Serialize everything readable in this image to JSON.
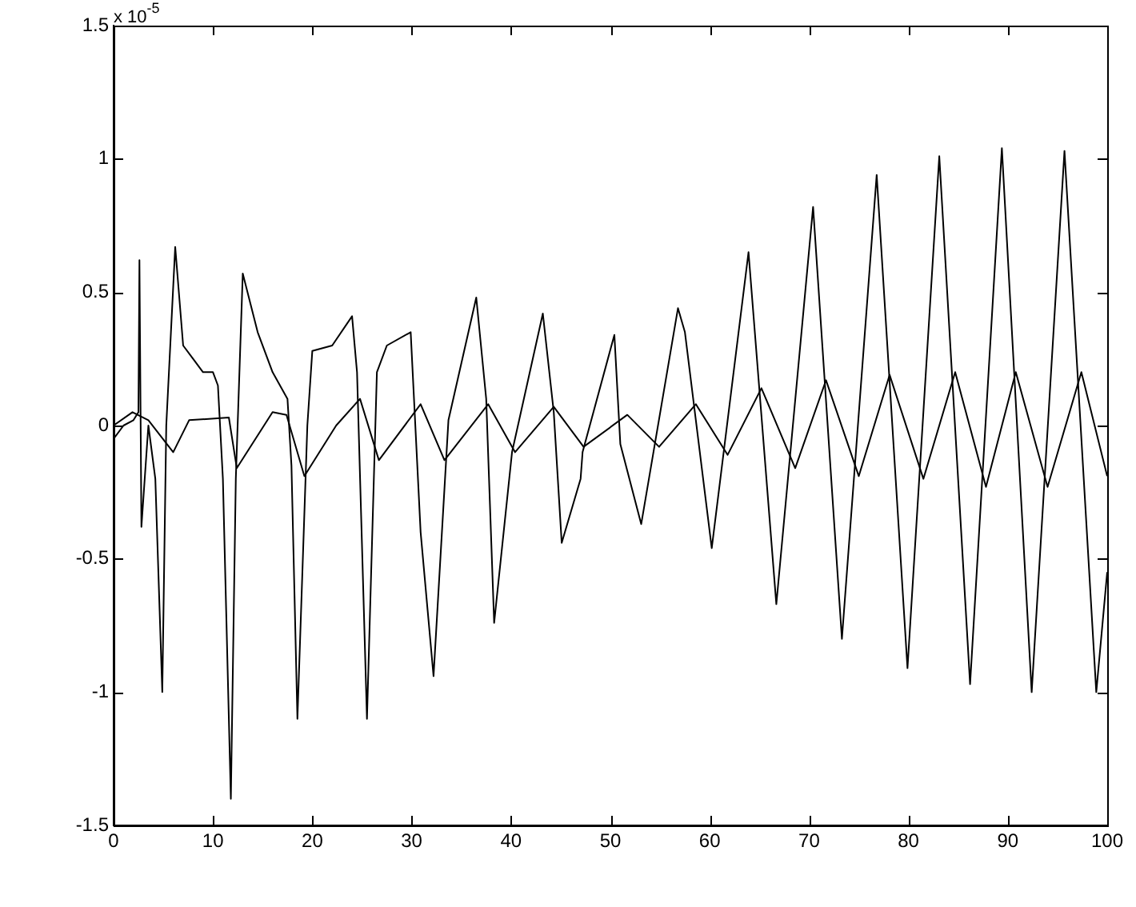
{
  "chart_data": {
    "type": "line",
    "annotations": [
      "x 10$^{-5}$"
    ],
    "xlim": [
      0,
      100
    ],
    "xticks": [
      0,
      10,
      20,
      30,
      40,
      50,
      60,
      70,
      80,
      90,
      100
    ],
    "ylim": [
      -1.5,
      1.5
    ],
    "yticks": [
      -1.5,
      -1,
      -0.5,
      0,
      0.5,
      1,
      1.5
    ],
    "grid": false,
    "legend": false,
    "marker": "none",
    "line_style": "solid",
    "series": [
      {
        "color": "#000000",
        "x": [
          0,
          1,
          2,
          2.5,
          2.6,
          2.8,
          3.5,
          4.2,
          4.9,
          5.3,
          6.2,
          7,
          8,
          9,
          10,
          10.5,
          11,
          11.8,
          12.3,
          13,
          14.5,
          16,
          17.5,
          17.9,
          18.5,
          19.5,
          20,
          22,
          24,
          24.5,
          25.5,
          26.5,
          27.5,
          29.9,
          30.9,
          32.2,
          33.7,
          36.5,
          37.5,
          38.3,
          40.1,
          43.2,
          44.3,
          45.1,
          47,
          47.2,
          50.4,
          51,
          53.1,
          56.8,
          57.5,
          60.2,
          63.9,
          66.7,
          70.4,
          73.3,
          76.8,
          79.9,
          83.1,
          86.2,
          89.4,
          92.4,
          95.7,
          98.9,
          100
        ],
        "values": [
          -0.05,
          0,
          0.02,
          0.05,
          0.62,
          -0.38,
          0,
          -0.2,
          -1,
          0,
          0.67,
          0.3,
          0.25,
          0.2,
          0.2,
          0.15,
          -0.2,
          -1.4,
          -0.2,
          0.57,
          0.35,
          0.2,
          0.1,
          -0.15,
          -1.1,
          0,
          0.28,
          0.3,
          0.41,
          0.2,
          -1.1,
          0.2,
          0.3,
          0.35,
          -0.4,
          -0.94,
          0.02,
          0.48,
          0.1,
          -0.74,
          -0.1,
          0.42,
          0.05,
          -0.44,
          -0.2,
          -0.1,
          0.34,
          -0.07,
          -0.37,
          0.44,
          0.35,
          -0.46,
          0.65,
          -0.67,
          0.82,
          -0.8,
          0.94,
          -0.91,
          1.01,
          -0.97,
          1.04,
          -1,
          1.03,
          -1,
          -0.55
        ]
      },
      {
        "color": "#000000",
        "x": [
          0,
          1.9,
          3.5,
          6,
          7.6,
          11.6,
          12.4,
          16,
          17.4,
          19.2,
          22.4,
          24.8,
          26.7,
          30.9,
          33.3,
          37.7,
          40.4,
          44.3,
          47.3,
          51.7,
          54.9,
          58.6,
          61.8,
          65.2,
          68.6,
          71.7,
          75,
          78.1,
          81.5,
          84.7,
          87.8,
          90.8,
          94,
          97.4,
          100
        ],
        "values": [
          0,
          0.05,
          0.02,
          -0.1,
          0.02,
          0.03,
          -0.16,
          0.05,
          0.04,
          -0.19,
          0,
          0.1,
          -0.13,
          0.08,
          -0.13,
          0.08,
          -0.1,
          0.07,
          -0.08,
          0.04,
          -0.08,
          0.08,
          -0.11,
          0.14,
          -0.16,
          0.17,
          -0.19,
          0.19,
          -0.2,
          0.2,
          -0.23,
          0.2,
          -0.23,
          0.2,
          -0.19
        ]
      }
    ]
  }
}
